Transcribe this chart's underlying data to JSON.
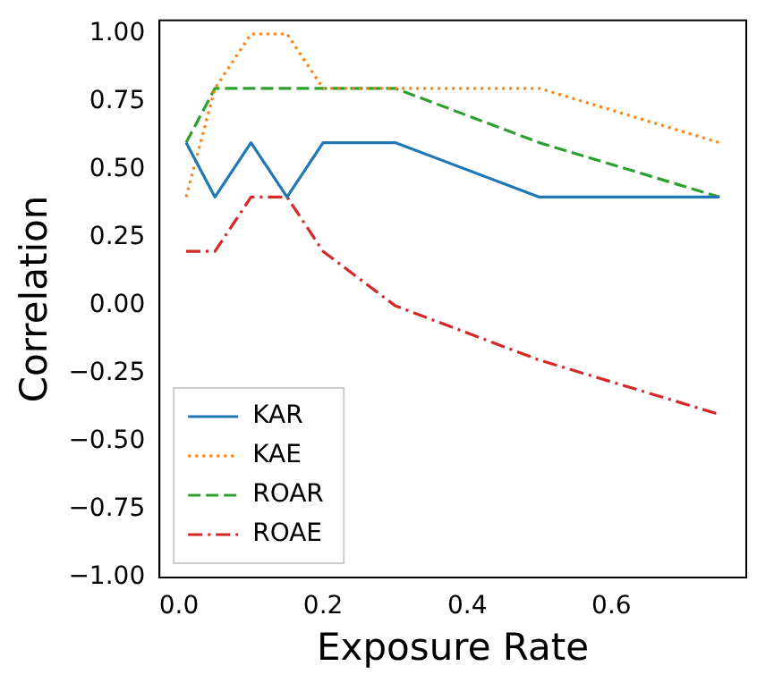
{
  "chart_data": {
    "type": "line",
    "xlabel": "Exposure Rate",
    "ylabel": "Correlation",
    "x": [
      0.01,
      0.05,
      0.1,
      0.15,
      0.2,
      0.3,
      0.5,
      0.75
    ],
    "series": [
      {
        "name": "KAR",
        "color": "#1f77b4",
        "line_style": "solid",
        "values": [
          0.6,
          0.4,
          0.6,
          0.4,
          0.6,
          0.6,
          0.4,
          0.4
        ]
      },
      {
        "name": "KAE",
        "color": "#ff7f0e",
        "line_style": "dotted",
        "values": [
          0.4,
          0.8,
          1.0,
          1.0,
          0.8,
          0.8,
          0.8,
          0.6
        ]
      },
      {
        "name": "ROAR",
        "color": "#2ca02c",
        "line_style": "dashed",
        "values": [
          0.6,
          0.8,
          0.8,
          0.8,
          0.8,
          0.8,
          0.6,
          0.4
        ]
      },
      {
        "name": "ROAE",
        "color": "#d62728",
        "line_style": "dashdot",
        "values": [
          0.2,
          0.2,
          0.4,
          0.4,
          0.2,
          0.0,
          -0.2,
          -0.4
        ]
      }
    ],
    "xlim": [
      -0.027,
      0.787
    ],
    "xticks": [
      {
        "value": 0,
        "label": "0.0"
      },
      {
        "value": 0.2,
        "label": "0.2"
      },
      {
        "value": 0.4,
        "label": "0.4"
      },
      {
        "value": 0.6,
        "label": "0.6"
      }
    ],
    "ylim": [
      -1.0,
      1.05
    ],
    "yticks": [
      {
        "value": -1,
        "label": "−1.00"
      },
      {
        "value": -0.75,
        "label": "−0.75"
      },
      {
        "value": -0.5,
        "label": "−0.50"
      },
      {
        "value": -0.25,
        "label": "−0.25"
      },
      {
        "value": 0,
        "label": "0.00"
      },
      {
        "value": 0.25,
        "label": "0.25"
      },
      {
        "value": 0.5,
        "label": "0.50"
      },
      {
        "value": 0.75,
        "label": "0.75"
      },
      {
        "value": 1,
        "label": "1.00"
      }
    ],
    "legend": "bottom left",
    "grid": false,
    "marker": "none"
  }
}
